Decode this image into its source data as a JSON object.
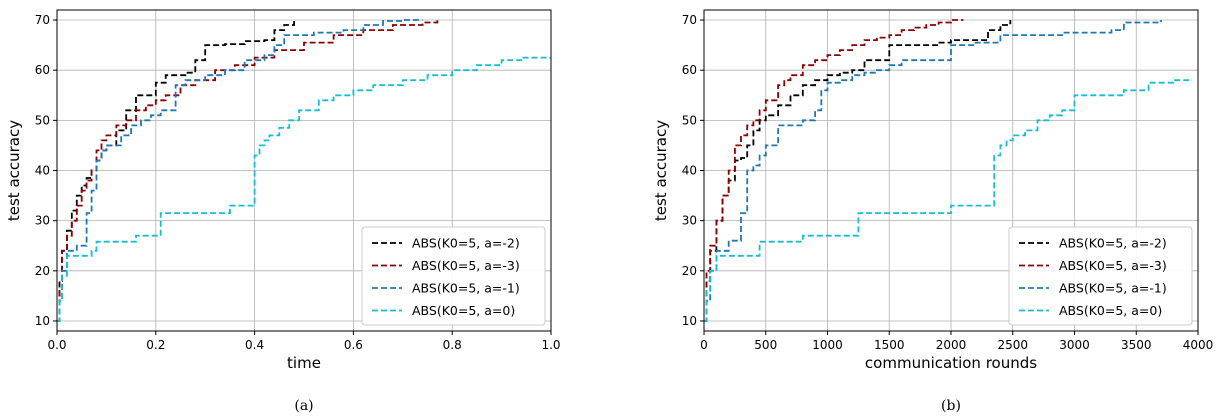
{
  "chart_data": [
    {
      "type": "line",
      "caption": "(a)",
      "xlabel": "time",
      "ylabel": "test accuracy",
      "xlim": [
        0,
        1
      ],
      "ylim": [
        8,
        72
      ],
      "xticks": [
        0,
        0.2,
        0.4,
        0.6,
        0.8,
        1.0
      ],
      "xtick_labels": [
        "0.0",
        "0.2",
        "0.4",
        "0.6",
        "0.8",
        "1.0"
      ],
      "yticks": [
        10,
        20,
        30,
        40,
        50,
        60,
        70
      ],
      "ytick_labels": [
        "10",
        "20",
        "30",
        "40",
        "50",
        "60",
        "70"
      ],
      "grid": true,
      "legend_position": "lower-right",
      "line_style": "dashed-step",
      "series": [
        {
          "name": "ABS(K0=5, a=-2)",
          "color": "#000000",
          "x": [
            0.0,
            0.005,
            0.01,
            0.02,
            0.03,
            0.04,
            0.05,
            0.06,
            0.07,
            0.08,
            0.09,
            0.1,
            0.12,
            0.14,
            0.16,
            0.2,
            0.22,
            0.26,
            0.28,
            0.3,
            0.34,
            0.38,
            0.42,
            0.44,
            0.46,
            0.48
          ],
          "y": [
            10,
            18,
            24,
            28,
            32,
            35,
            37,
            38.5,
            40,
            42,
            44,
            45,
            48,
            52,
            55,
            57.5,
            59,
            59.5,
            62,
            65,
            65.2,
            65.8,
            66,
            68,
            69,
            70
          ]
        },
        {
          "name": "ABS(K0=5, a=-3)",
          "color": "#8b0000",
          "x": [
            0.0,
            0.005,
            0.01,
            0.02,
            0.03,
            0.04,
            0.05,
            0.06,
            0.07,
            0.08,
            0.09,
            0.1,
            0.12,
            0.14,
            0.16,
            0.18,
            0.2,
            0.22,
            0.25,
            0.28,
            0.32,
            0.36,
            0.4,
            0.44,
            0.5,
            0.56,
            0.62,
            0.68,
            0.74,
            0.77
          ],
          "y": [
            10,
            16,
            24,
            27,
            30,
            33,
            36,
            38,
            40,
            44,
            46,
            47,
            49,
            50,
            52,
            53,
            54,
            55,
            57,
            58,
            60,
            61,
            62.5,
            64,
            65.5,
            67,
            68,
            69,
            69.5,
            70
          ]
        },
        {
          "name": "ABS(K0=5, a=-1)",
          "color": "#1f77b4",
          "x": [
            0.0,
            0.005,
            0.01,
            0.02,
            0.04,
            0.06,
            0.07,
            0.08,
            0.09,
            0.1,
            0.13,
            0.15,
            0.17,
            0.19,
            0.21,
            0.24,
            0.26,
            0.3,
            0.34,
            0.38,
            0.42,
            0.44,
            0.46,
            0.52,
            0.58,
            0.62,
            0.66,
            0.7,
            0.74
          ],
          "y": [
            10,
            14,
            20,
            24,
            25,
            31.5,
            36,
            42,
            44,
            45,
            47,
            49,
            50,
            51,
            52,
            57,
            58,
            59,
            60,
            62,
            63,
            65,
            67,
            67.5,
            68,
            69,
            69.8,
            70,
            70
          ]
        },
        {
          "name": "ABS(K0=5, a=0)",
          "color": "#17becf",
          "x": [
            0.0,
            0.005,
            0.01,
            0.02,
            0.07,
            0.08,
            0.16,
            0.21,
            0.3,
            0.35,
            0.4,
            0.41,
            0.42,
            0.43,
            0.45,
            0.47,
            0.49,
            0.53,
            0.56,
            0.6,
            0.64,
            0.7,
            0.75,
            0.8,
            0.85,
            0.9,
            0.94,
            1.0
          ],
          "y": [
            10,
            14,
            19,
            23,
            24,
            25.8,
            27,
            31.5,
            31.5,
            33,
            43,
            45,
            46,
            47,
            48.5,
            50,
            52,
            54,
            55,
            56,
            57,
            58,
            59,
            60,
            61,
            62,
            62.5,
            62.5
          ]
        }
      ]
    },
    {
      "type": "line",
      "caption": "(b)",
      "xlabel": "communication rounds",
      "ylabel": "test accuracy",
      "xlim": [
        0,
        4000
      ],
      "ylim": [
        8,
        72
      ],
      "xticks": [
        0,
        500,
        1000,
        1500,
        2000,
        2500,
        3000,
        3500,
        4000
      ],
      "xtick_labels": [
        "0",
        "500",
        "1000",
        "1500",
        "2000",
        "2500",
        "3000",
        "3500",
        "4000"
      ],
      "yticks": [
        10,
        20,
        30,
        40,
        50,
        60,
        70
      ],
      "ytick_labels": [
        "10",
        "20",
        "30",
        "40",
        "50",
        "60",
        "70"
      ],
      "grid": true,
      "legend_position": "lower-right",
      "line_style": "dashed-step",
      "series": [
        {
          "name": "ABS(K0=5, a=-2)",
          "color": "#000000",
          "x": [
            0,
            20,
            50,
            100,
            150,
            200,
            250,
            300,
            350,
            400,
            450,
            500,
            600,
            700,
            800,
            900,
            1000,
            1100,
            1200,
            1300,
            1500,
            1700,
            1900,
            2000,
            2200,
            2300,
            2400,
            2480
          ],
          "y": [
            10,
            18,
            24,
            30,
            35,
            38,
            42,
            42.5,
            45,
            48,
            50,
            51,
            53,
            55,
            57,
            58,
            59,
            59.5,
            60,
            62,
            65,
            65,
            65.5,
            66,
            66,
            68,
            69,
            70
          ]
        },
        {
          "name": "ABS(K0=5, a=-3)",
          "color": "#8b0000",
          "x": [
            0,
            20,
            50,
            100,
            150,
            200,
            250,
            300,
            350,
            400,
            450,
            500,
            600,
            650,
            700,
            800,
            900,
            1000,
            1100,
            1200,
            1300,
            1400,
            1500,
            1600,
            1700,
            1800,
            1900,
            2000,
            2100
          ],
          "y": [
            10,
            20,
            25,
            30,
            35,
            40,
            45,
            47,
            49,
            50,
            52,
            54,
            57,
            58,
            59,
            61,
            62,
            63,
            64,
            65,
            66,
            66.5,
            67,
            68,
            68.5,
            69,
            69.5,
            70,
            70
          ]
        },
        {
          "name": "ABS(K0=5, a=-1)",
          "color": "#1f77b4",
          "x": [
            0,
            20,
            50,
            100,
            200,
            300,
            350,
            400,
            450,
            500,
            600,
            700,
            800,
            900,
            950,
            1000,
            1100,
            1200,
            1300,
            1400,
            1500,
            1600,
            1800,
            2000,
            2200,
            2400,
            2600,
            2900,
            3300,
            3400,
            3700
          ],
          "y": [
            10,
            14,
            20,
            24,
            26,
            31.5,
            40,
            41,
            43,
            45,
            49,
            49,
            50,
            52,
            56,
            57.5,
            58,
            59,
            59.5,
            60,
            61,
            62,
            62,
            65,
            65.5,
            67,
            67,
            67.5,
            68,
            69.5,
            70
          ]
        },
        {
          "name": "ABS(K0=5, a=0)",
          "color": "#17becf",
          "x": [
            0,
            20,
            50,
            100,
            400,
            450,
            800,
            1200,
            1250,
            1600,
            2000,
            2300,
            2350,
            2400,
            2450,
            2500,
            2600,
            2700,
            2800,
            2900,
            3000,
            3200,
            3400,
            3600,
            3800,
            3950
          ],
          "y": [
            10,
            16,
            20,
            23,
            23,
            25.8,
            27,
            27,
            31.5,
            31.5,
            33,
            33,
            43,
            45,
            46,
            47,
            48,
            50,
            51,
            52,
            55,
            55,
            56,
            57.5,
            58,
            58
          ]
        }
      ]
    }
  ]
}
